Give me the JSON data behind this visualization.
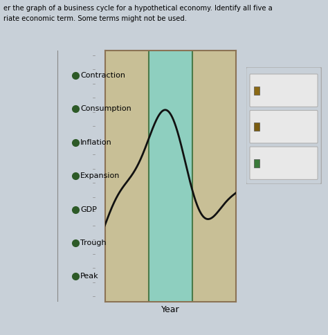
{
  "title_line1": "er the graph of a business cycle for a hypothetical economy. Identify all five a",
  "title_line2": "riate economic term. Some terms might not be used.",
  "xlabel": "Year",
  "legend_items": [
    {
      "label": "Contraction"
    },
    {
      "label": "Consumption"
    },
    {
      "label": "Inflation"
    },
    {
      "label": "Expansion"
    },
    {
      "label": "GDP"
    },
    {
      "label": "Trough"
    },
    {
      "label": "Peak"
    }
  ],
  "legend_dot_color": "#2d5a27",
  "region1_color": "#c8bf96",
  "region2_color": "#8ecfbf",
  "region3_color": "#c8bf96",
  "region_border_color": "#4a7a4a",
  "region_outer_border": "#8B7355",
  "curve_color": "#111111",
  "answer_box_fill": "#e8e8e8",
  "answer_box_border": "#b0b0b0",
  "answer_box_outer_border": "#aaaaaa",
  "answer_icon1": "#8B6914",
  "answer_icon2": "#7a5c10",
  "answer_icon3": "#3a7a3a",
  "bg_color": "#c8d0d8",
  "plot_bg": "#c8d0d8",
  "left_panel_bg": "#c8d0d8"
}
